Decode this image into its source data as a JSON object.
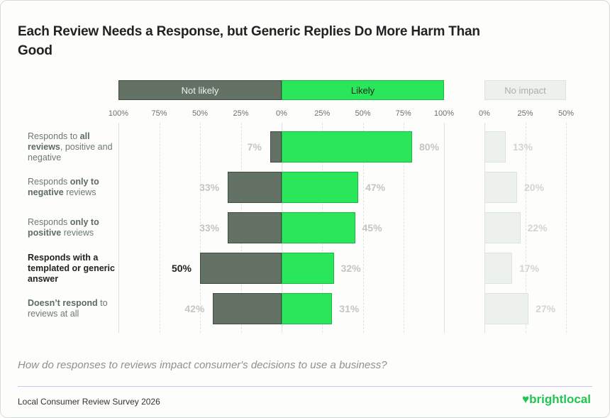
{
  "chart_data": {
    "type": "bar",
    "title": "Each Review Needs a Response, but Generic Replies Do More Harm Than Good",
    "subtitle": "How do responses to reviews impact consumer's decisions to use a business?",
    "source": "Local Consumer Review Survey 2026",
    "brand": "brightlocal",
    "orientation": "horizontal-diverging",
    "categories": [
      [
        {
          "t": "Responds to "
        },
        {
          "t": "all reviews",
          "b": true
        },
        {
          "t": ", positive and negative"
        }
      ],
      [
        {
          "t": "Responds "
        },
        {
          "t": "only to negative",
          "b": true
        },
        {
          "t": " reviews"
        }
      ],
      [
        {
          "t": "Responds "
        },
        {
          "t": "only to positive",
          "b": true
        },
        {
          "t": " reviews"
        }
      ],
      [
        {
          "t": "Responds with a templated or generic answer",
          "b": true
        }
      ],
      [
        {
          "t": "Doesn’t respond",
          "b": true
        },
        {
          "t": " to reviews at all"
        }
      ]
    ],
    "highlight_row": 3,
    "series": [
      {
        "name": "Not likely",
        "values": [
          7,
          33,
          33,
          50,
          42
        ],
        "color": "#647266",
        "range": [
          0,
          100
        ],
        "ticks": [
          "100%",
          "75%",
          "50%",
          "25%",
          "0%"
        ]
      },
      {
        "name": "Likely",
        "values": [
          80,
          47,
          45,
          32,
          31
        ],
        "color": "#2ae65a",
        "range": [
          0,
          100
        ],
        "ticks": [
          "0%",
          "25%",
          "50%",
          "75%",
          "100%"
        ]
      },
      {
        "name": "No impact",
        "values": [
          13,
          20,
          22,
          17,
          27
        ],
        "color": "#edf1ee",
        "range": [
          0,
          50
        ],
        "ticks": [
          "0%",
          "25%",
          "50%"
        ]
      }
    ]
  }
}
